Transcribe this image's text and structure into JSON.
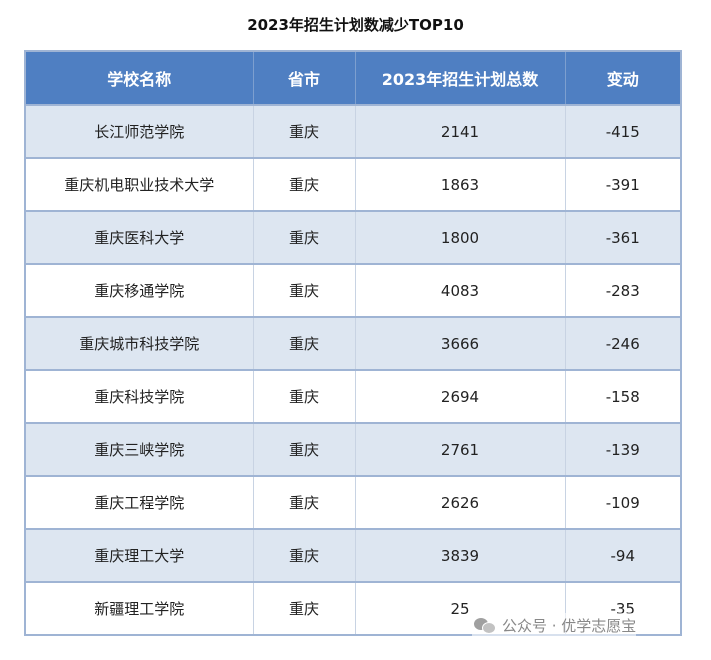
{
  "title": "2023年招生计划数减少TOP10",
  "table": {
    "headers": [
      "学校名称",
      "省市",
      "2023年招生计划总数",
      "变动"
    ],
    "rows": [
      [
        "长江师范学院",
        "重庆",
        "2141",
        "-415"
      ],
      [
        "重庆机电职业技术大学",
        "重庆",
        "1863",
        "-391"
      ],
      [
        "重庆医科大学",
        "重庆",
        "1800",
        "-361"
      ],
      [
        "重庆移通学院",
        "重庆",
        "4083",
        "-283"
      ],
      [
        "重庆城市科技学院",
        "重庆",
        "3666",
        "-246"
      ],
      [
        "重庆科技学院",
        "重庆",
        "2694",
        "-158"
      ],
      [
        "重庆三峡学院",
        "重庆",
        "2761",
        "-139"
      ],
      [
        "重庆工程学院",
        "重庆",
        "2626",
        "-109"
      ],
      [
        "重庆理工大学",
        "重庆",
        "3839",
        "-94"
      ],
      [
        "新疆理工学院",
        "重庆",
        "25",
        "-35"
      ]
    ]
  },
  "watermark": {
    "text": "公众号 · 优学志愿宝",
    "icon": "wechat-icon"
  }
}
